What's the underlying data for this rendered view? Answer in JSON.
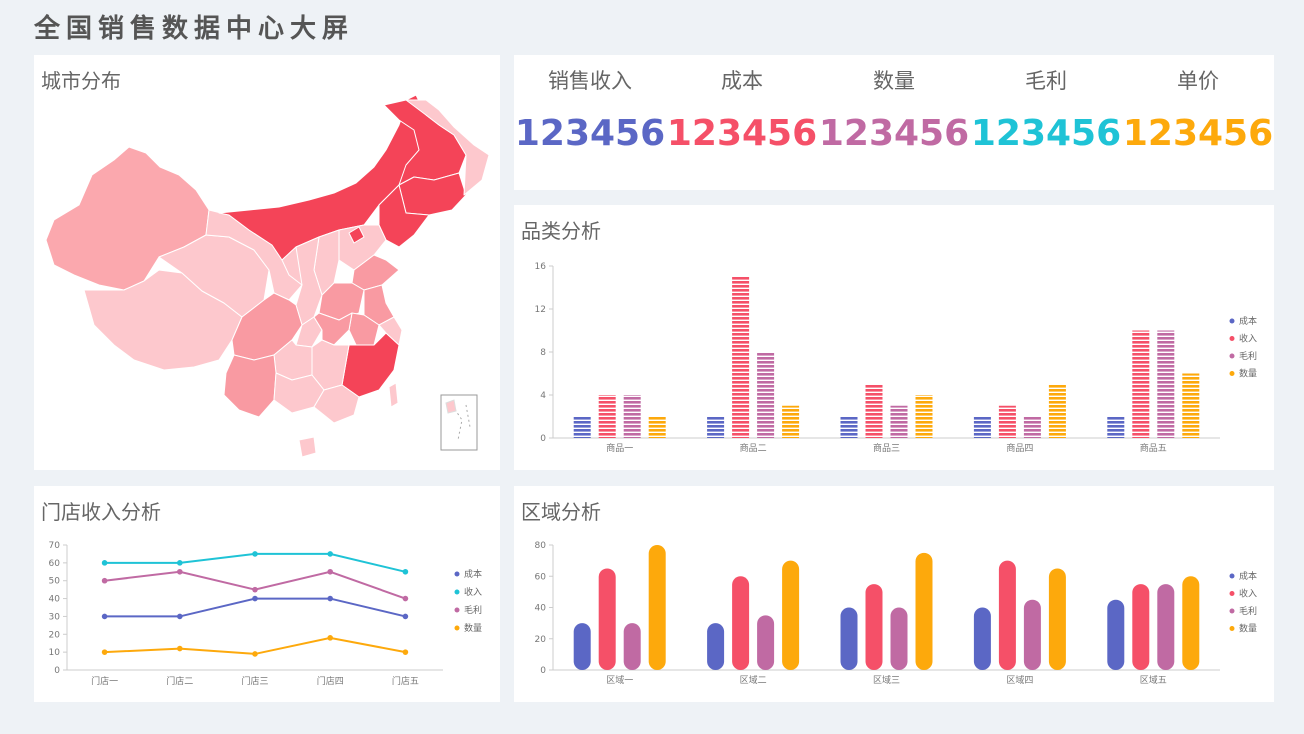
{
  "header": {
    "title": "全国销售数据中心大屏"
  },
  "colors": {
    "cost": "#5b67c5",
    "revenue": "#f55068",
    "profit": "#c06aa3",
    "quantity": "#fda90c",
    "sales": "#5b67c5",
    "revenue2": "#f55068",
    "count": "#c06aa3",
    "gross": "#1fc3d6",
    "price": "#fda90c"
  },
  "map_panel": {
    "title": "城市分布"
  },
  "kpis": [
    {
      "label": "销售收入",
      "value": "123456",
      "color": "#5b67c5"
    },
    {
      "label": "成本",
      "value": "123456",
      "color": "#f55068"
    },
    {
      "label": "数量",
      "value": "123456",
      "color": "#c06aa3"
    },
    {
      "label": "毛利",
      "value": "123456",
      "color": "#1fc3d6"
    },
    {
      "label": "单价",
      "value": "123456",
      "color": "#fda90c"
    }
  ],
  "category_panel": {
    "title": "品类分析"
  },
  "store_panel": {
    "title": "门店收入分析"
  },
  "area_panel": {
    "title": "区域分析"
  },
  "chart_data": [
    {
      "id": "category",
      "type": "bar",
      "categories": [
        "商品一",
        "商品二",
        "商品三",
        "商品四",
        "商品五"
      ],
      "series": [
        {
          "name": "成本",
          "values": [
            2,
            2,
            2,
            2,
            2
          ],
          "color": "#5b67c5"
        },
        {
          "name": "收入",
          "values": [
            4,
            15,
            5,
            3,
            10
          ],
          "color": "#f55068"
        },
        {
          "name": "毛利",
          "values": [
            4,
            8,
            3,
            2,
            10
          ],
          "color": "#c06aa3"
        },
        {
          "name": "数量",
          "values": [
            2,
            3,
            4,
            5,
            6
          ],
          "color": "#fda90c"
        }
      ],
      "yticks": [
        0,
        4,
        8,
        12,
        16
      ],
      "ylim": [
        0,
        16
      ],
      "legend": "right"
    },
    {
      "id": "store",
      "type": "line",
      "categories": [
        "门店一",
        "门店二",
        "门店三",
        "门店四",
        "门店五"
      ],
      "series": [
        {
          "name": "成本",
          "values": [
            30,
            30,
            40,
            40,
            30
          ],
          "color": "#5b67c5"
        },
        {
          "name": "收入",
          "values": [
            60,
            60,
            65,
            65,
            55
          ],
          "color": "#1fc3d6"
        },
        {
          "name": "毛利",
          "values": [
            50,
            55,
            45,
            55,
            40
          ],
          "color": "#c06aa3"
        },
        {
          "name": "数量",
          "values": [
            10,
            12,
            9,
            18,
            10
          ],
          "color": "#fda90c"
        }
      ],
      "yticks": [
        0,
        10,
        20,
        30,
        40,
        50,
        60,
        70
      ],
      "ylim": [
        0,
        70
      ],
      "legend": "right"
    },
    {
      "id": "area",
      "type": "bar",
      "categories": [
        "区域一",
        "区域二",
        "区域三",
        "区域四",
        "区域五"
      ],
      "series": [
        {
          "name": "成本",
          "values": [
            30,
            30,
            40,
            40,
            45
          ],
          "color": "#5b67c5"
        },
        {
          "name": "收入",
          "values": [
            65,
            60,
            55,
            70,
            55
          ],
          "color": "#f55068"
        },
        {
          "name": "毛利",
          "values": [
            30,
            35,
            40,
            45,
            55
          ],
          "color": "#c06aa3"
        },
        {
          "name": "数量",
          "values": [
            80,
            70,
            75,
            65,
            60
          ],
          "color": "#fda90c"
        }
      ],
      "yticks": [
        0,
        20,
        40,
        60,
        80
      ],
      "ylim": [
        0,
        80
      ],
      "legend": "right"
    }
  ]
}
